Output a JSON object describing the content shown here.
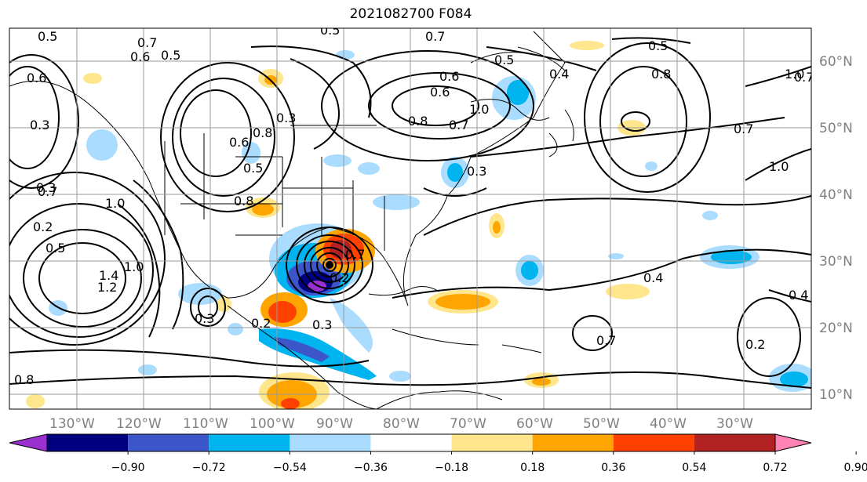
{
  "title": "2021082700 F084",
  "map": {
    "longitude_labels": [
      "130°W",
      "120°W",
      "110°W",
      "100°W",
      "90°W",
      "80°W",
      "70°W",
      "60°W",
      "50°W",
      "40°W",
      "30°W"
    ],
    "latitude_labels": [
      "60°N",
      "50°N",
      "40°N",
      "30°N",
      "20°N",
      "10°N"
    ],
    "grid": true,
    "contour_labels": [
      "0.5",
      "0.7",
      "0.6",
      "0.5",
      "0.6",
      "0.5",
      "0.7",
      "0.5",
      "0.6",
      "0.4",
      "0.6",
      "0.7",
      "1.0",
      "0.8",
      "0.8",
      "1.0",
      "0.7",
      "0.8",
      "0.5",
      "0.6",
      "0.7",
      "0.8",
      "1.0",
      "0.3",
      "1.4",
      "1.2",
      "1.0",
      "0.3",
      "0.2",
      "0.3",
      "0.5",
      "0.3",
      "0.2",
      "0.3",
      "0.4",
      "0.4",
      "0.2",
      "0.7",
      "0.6",
      "1.0",
      "0.7",
      "0.5",
      "0.3",
      "0.8",
      "0.7",
      "0.2"
    ],
    "colors": {
      "land_outline": "#000000",
      "grid": "#9a9a9a",
      "contour": "#000000"
    }
  },
  "colorbar": {
    "ticks": [
      "−0.90",
      "−0.72",
      "−0.54",
      "−0.36",
      "−0.18",
      "0.18",
      "0.36",
      "0.54",
      "0.72",
      "0.90"
    ],
    "colors": [
      "#9b30d0",
      "#000080",
      "#3c55c8",
      "#00b4f0",
      "#aadcff",
      "#ffffff",
      "#ffe68c",
      "#ffa500",
      "#ff4000",
      "#b22222",
      "#ff82b4"
    ]
  }
}
